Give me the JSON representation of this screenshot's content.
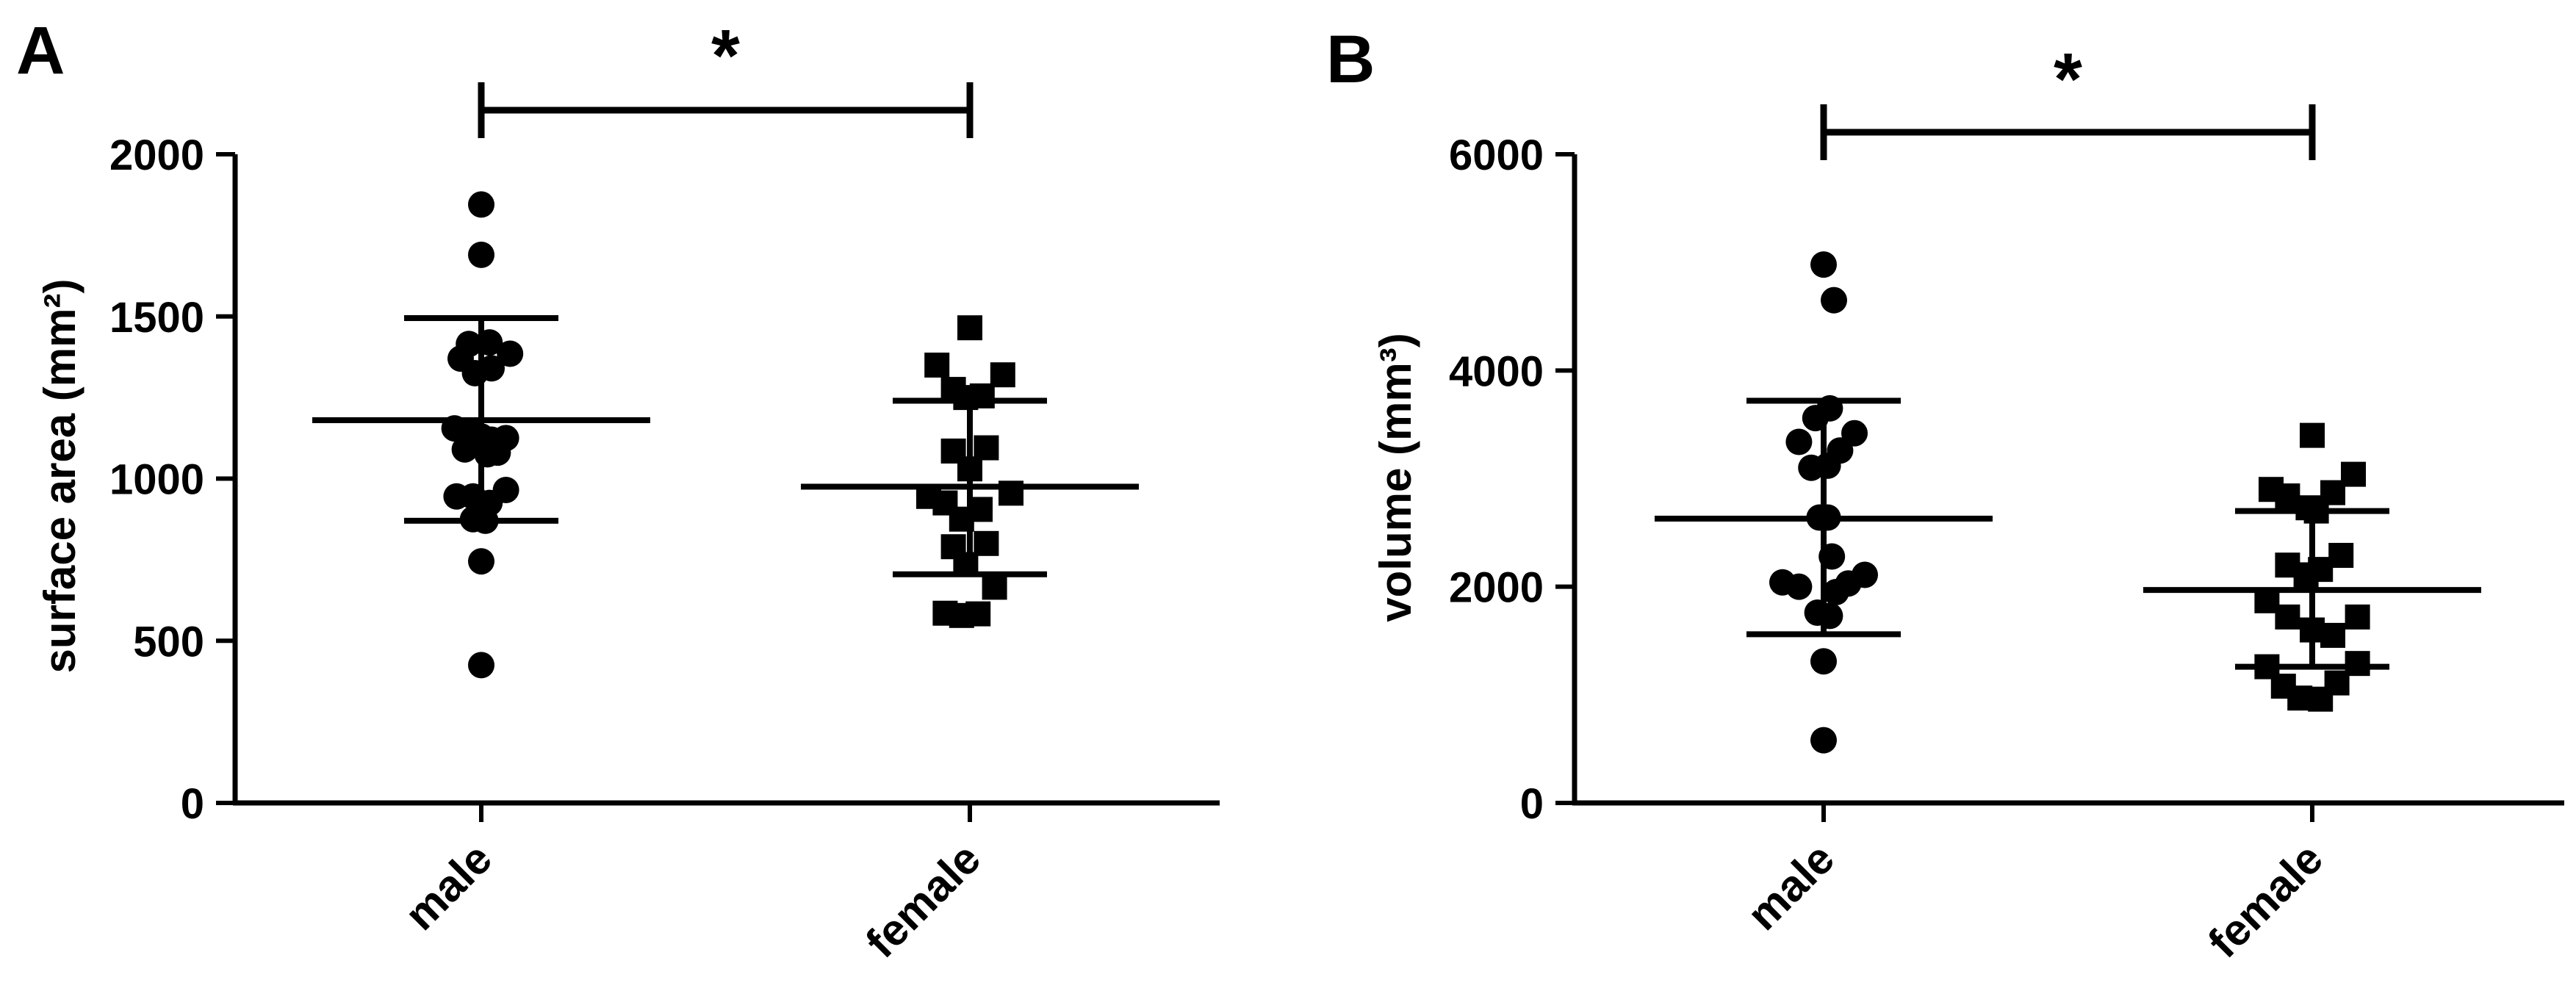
{
  "colors": {
    "ink": "#000000",
    "background": "#ffffff"
  },
  "chart_data": [
    {
      "panel": "A",
      "type": "scatter",
      "categories": [
        "male",
        "female"
      ],
      "ylabel": "surface area (mm²)",
      "xlabel": "",
      "ylim": [
        0,
        2000
      ],
      "yticks": [
        0,
        500,
        1000,
        1500,
        2000
      ],
      "yticklabels": [
        "0",
        "500",
        "1000",
        "1500",
        "2000"
      ],
      "significance": {
        "label": "*",
        "between": [
          "male",
          "female"
        ]
      },
      "groups": [
        {
          "category": "male",
          "marker": "circle",
          "mean": 1180,
          "sd_low": 870,
          "sd_high": 1495,
          "points": [
            {
              "dx": -0.13,
              "y": 1155
            },
            {
              "dx": -0.05,
              "y": 1140
            },
            {
              "dx": 0.0,
              "y": 1130
            },
            {
              "dx": 0.05,
              "y": 1120
            },
            {
              "dx": 0.12,
              "y": 1125
            },
            {
              "dx": -0.08,
              "y": 1090
            },
            {
              "dx": 0.03,
              "y": 1075
            },
            {
              "dx": 0.08,
              "y": 1080
            },
            {
              "dx": -0.12,
              "y": 945
            },
            {
              "dx": -0.04,
              "y": 945
            },
            {
              "dx": 0.04,
              "y": 925
            },
            {
              "dx": 0.12,
              "y": 965
            },
            {
              "dx": -0.04,
              "y": 875
            },
            {
              "dx": 0.02,
              "y": 870
            },
            {
              "dx": -0.1,
              "y": 1370
            },
            {
              "dx": -0.03,
              "y": 1325
            },
            {
              "dx": 0.05,
              "y": 1340
            },
            {
              "dx": 0.14,
              "y": 1385
            },
            {
              "dx": -0.06,
              "y": 1415
            },
            {
              "dx": 0.04,
              "y": 1420
            },
            {
              "dx": 0.0,
              "y": 1690
            },
            {
              "dx": 0.0,
              "y": 1845
            },
            {
              "dx": 0.0,
              "y": 745
            },
            {
              "dx": 0.0,
              "y": 425
            }
          ]
        },
        {
          "category": "female",
          "marker": "square",
          "mean": 975,
          "sd_low": 705,
          "sd_high": 1240,
          "points": [
            {
              "dx": 0.0,
              "y": 1465
            },
            {
              "dx": -0.16,
              "y": 1350
            },
            {
              "dx": 0.16,
              "y": 1320
            },
            {
              "dx": -0.08,
              "y": 1275
            },
            {
              "dx": 0.06,
              "y": 1255
            },
            {
              "dx": -0.02,
              "y": 1250
            },
            {
              "dx": -0.08,
              "y": 1085
            },
            {
              "dx": 0.08,
              "y": 1095
            },
            {
              "dx": -0.2,
              "y": 945
            },
            {
              "dx": -0.12,
              "y": 925
            },
            {
              "dx": 0.05,
              "y": 905
            },
            {
              "dx": 0.2,
              "y": 955
            },
            {
              "dx": -0.04,
              "y": 875
            },
            {
              "dx": 0.0,
              "y": 1030
            },
            {
              "dx": -0.08,
              "y": 790
            },
            {
              "dx": 0.08,
              "y": 800
            },
            {
              "dx": -0.02,
              "y": 735
            },
            {
              "dx": 0.12,
              "y": 665
            },
            {
              "dx": -0.12,
              "y": 585
            },
            {
              "dx": -0.04,
              "y": 578
            },
            {
              "dx": 0.04,
              "y": 583
            }
          ]
        }
      ]
    },
    {
      "panel": "B",
      "type": "scatter",
      "categories": [
        "male",
        "female"
      ],
      "ylabel": "volume (mm³)",
      "xlabel": "",
      "ylim": [
        0,
        6000
      ],
      "yticks": [
        0,
        2000,
        4000,
        6000
      ],
      "yticklabels": [
        "0",
        "2000",
        "4000",
        "6000"
      ],
      "significance": {
        "label": "*",
        "between": [
          "male",
          "female"
        ]
      },
      "groups": [
        {
          "category": "male",
          "marker": "circle",
          "mean": 2630,
          "sd_low": 1560,
          "sd_high": 3720,
          "points": [
            {
              "dx": 0.0,
              "y": 4980
            },
            {
              "dx": 0.05,
              "y": 4650
            },
            {
              "dx": -0.04,
              "y": 3560
            },
            {
              "dx": 0.03,
              "y": 3650
            },
            {
              "dx": -0.12,
              "y": 3340
            },
            {
              "dx": 0.08,
              "y": 3260
            },
            {
              "dx": 0.15,
              "y": 3420
            },
            {
              "dx": -0.06,
              "y": 3100
            },
            {
              "dx": 0.02,
              "y": 3120
            },
            {
              "dx": -0.02,
              "y": 2640
            },
            {
              "dx": 0.02,
              "y": 2640
            },
            {
              "dx": 0.04,
              "y": 2280
            },
            {
              "dx": -0.2,
              "y": 2040
            },
            {
              "dx": -0.12,
              "y": 2000
            },
            {
              "dx": 0.06,
              "y": 1950
            },
            {
              "dx": 0.12,
              "y": 2030
            },
            {
              "dx": 0.2,
              "y": 2110
            },
            {
              "dx": -0.03,
              "y": 1760
            },
            {
              "dx": 0.03,
              "y": 1730
            },
            {
              "dx": 0.0,
              "y": 1310
            },
            {
              "dx": 0.0,
              "y": 580
            }
          ]
        },
        {
          "category": "female",
          "marker": "square",
          "mean": 1970,
          "sd_low": 1260,
          "sd_high": 2700,
          "points": [
            {
              "dx": 0.0,
              "y": 3400
            },
            {
              "dx": 0.2,
              "y": 3040
            },
            {
              "dx": -0.2,
              "y": 2900
            },
            {
              "dx": -0.12,
              "y": 2840
            },
            {
              "dx": 0.1,
              "y": 2870
            },
            {
              "dx": -0.02,
              "y": 2730
            },
            {
              "dx": 0.02,
              "y": 2700
            },
            {
              "dx": -0.12,
              "y": 2200
            },
            {
              "dx": -0.03,
              "y": 2110
            },
            {
              "dx": 0.04,
              "y": 2160
            },
            {
              "dx": 0.14,
              "y": 2290
            },
            {
              "dx": -0.22,
              "y": 1870
            },
            {
              "dx": -0.12,
              "y": 1720
            },
            {
              "dx": 0.0,
              "y": 1600
            },
            {
              "dx": 0.1,
              "y": 1550
            },
            {
              "dx": 0.22,
              "y": 1720
            },
            {
              "dx": -0.22,
              "y": 1260
            },
            {
              "dx": 0.22,
              "y": 1290
            },
            {
              "dx": -0.14,
              "y": 1080
            },
            {
              "dx": -0.06,
              "y": 970
            },
            {
              "dx": 0.04,
              "y": 960
            },
            {
              "dx": 0.12,
              "y": 1110
            }
          ]
        }
      ]
    }
  ]
}
